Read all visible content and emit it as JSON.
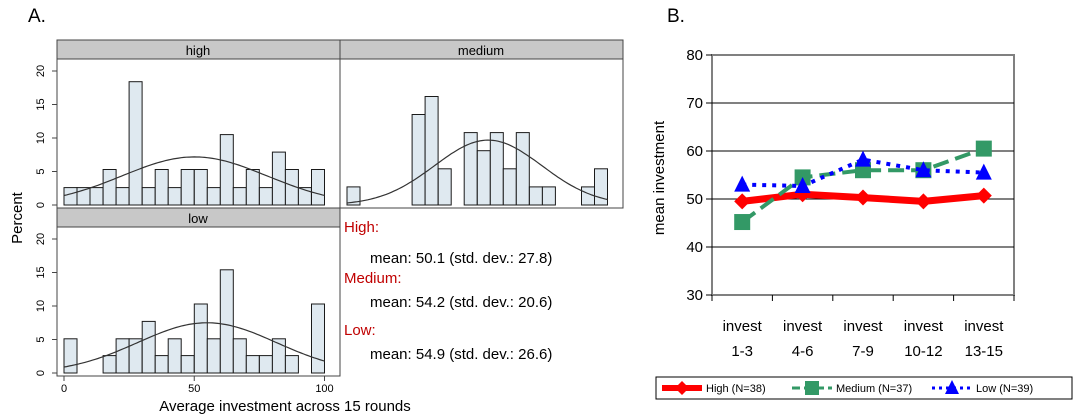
{
  "chart_data": [
    {
      "panel": "A.",
      "type": "bar",
      "subtype": "faceted histogram with normal density overlay",
      "xlabel": "Average investment across 15 rounds",
      "ylabel": "Percent",
      "x_ticks": [
        "0",
        "50",
        "100"
      ],
      "y_ticks": [
        "0",
        "5",
        "10",
        "15",
        "20"
      ],
      "xlim": [
        0,
        100
      ],
      "ylim": [
        0,
        21
      ],
      "bin_width": 5,
      "facets": [
        {
          "name": "high",
          "bins": [
            0,
            5,
            10,
            15,
            20,
            25,
            30,
            35,
            40,
            45,
            50,
            55,
            60,
            65,
            70,
            75,
            80,
            85,
            90,
            95
          ],
          "values": [
            2.6,
            2.6,
            2.6,
            5.3,
            2.6,
            18.4,
            2.6,
            5.3,
            2.6,
            5.3,
            5.3,
            2.6,
            10.5,
            2.6,
            5.3,
            2.6,
            7.9,
            5.3,
            2.6,
            5.3
          ],
          "normal": {
            "mean": 50.1,
            "sd": 27.8
          }
        },
        {
          "name": "medium",
          "bins": [
            0,
            5,
            10,
            15,
            20,
            25,
            30,
            35,
            40,
            45,
            50,
            55,
            60,
            65,
            70,
            75,
            80,
            85,
            90,
            95
          ],
          "values": [
            2.7,
            0,
            0,
            0,
            0,
            13.5,
            16.2,
            5.4,
            0,
            10.8,
            8.1,
            10.8,
            5.4,
            10.8,
            2.7,
            2.7,
            0,
            0,
            2.7,
            5.4
          ],
          "normal": {
            "mean": 54.2,
            "sd": 20.6
          }
        },
        {
          "name": "low",
          "bins": [
            0,
            5,
            10,
            15,
            20,
            25,
            30,
            35,
            40,
            45,
            50,
            55,
            60,
            65,
            70,
            75,
            80,
            85,
            90,
            95
          ],
          "values": [
            5.1,
            0,
            0,
            2.6,
            5.1,
            5.1,
            7.7,
            2.6,
            5.1,
            2.6,
            10.3,
            5.1,
            15.4,
            5.1,
            2.6,
            2.6,
            5.1,
            2.6,
            0,
            10.3
          ],
          "normal": {
            "mean": 54.9,
            "sd": 26.6
          }
        }
      ],
      "annotations": [
        {
          "head": "High:",
          "line": "mean: 50.1 (std. dev.: 27.8)"
        },
        {
          "head": "Medium:",
          "line": "mean: 54.2 (std. dev.: 20.6)"
        },
        {
          "head": "Low:",
          "line": "mean: 54.9 (std. dev.: 26.6)"
        }
      ],
      "colors": {
        "bar_fill": "#dfe9f0",
        "bar_stroke": "#1a1a1a",
        "facet_header": "#c8c8c8"
      }
    },
    {
      "panel": "B.",
      "type": "line",
      "ylabel": "mean investment",
      "xlabel": "",
      "categories": [
        [
          "invest",
          "1-3"
        ],
        [
          "invest",
          "4-6"
        ],
        [
          "invest",
          "7-9"
        ],
        [
          "invest",
          "10-12"
        ],
        [
          "invest",
          "13-15"
        ]
      ],
      "y_ticks": [
        "30",
        "40",
        "50",
        "60",
        "70",
        "80"
      ],
      "ylim": [
        30,
        80
      ],
      "grid": true,
      "legend_position": "bottom",
      "series": [
        {
          "name": "High (N=38)",
          "values": [
            49.5,
            51.0,
            50.3,
            49.5,
            50.7
          ],
          "color": "#ff0000",
          "marker": "diamond",
          "style": "solid"
        },
        {
          "name": "Medium (N=37)",
          "values": [
            45.2,
            54.5,
            56.0,
            56.0,
            60.5
          ],
          "color": "#339966",
          "marker": "square",
          "style": "dashed"
        },
        {
          "name": "Low (N=39)",
          "values": [
            53.0,
            52.7,
            58.2,
            56.0,
            55.5
          ],
          "color": "#0000ff",
          "marker": "triangle",
          "style": "dotted"
        }
      ]
    }
  ]
}
